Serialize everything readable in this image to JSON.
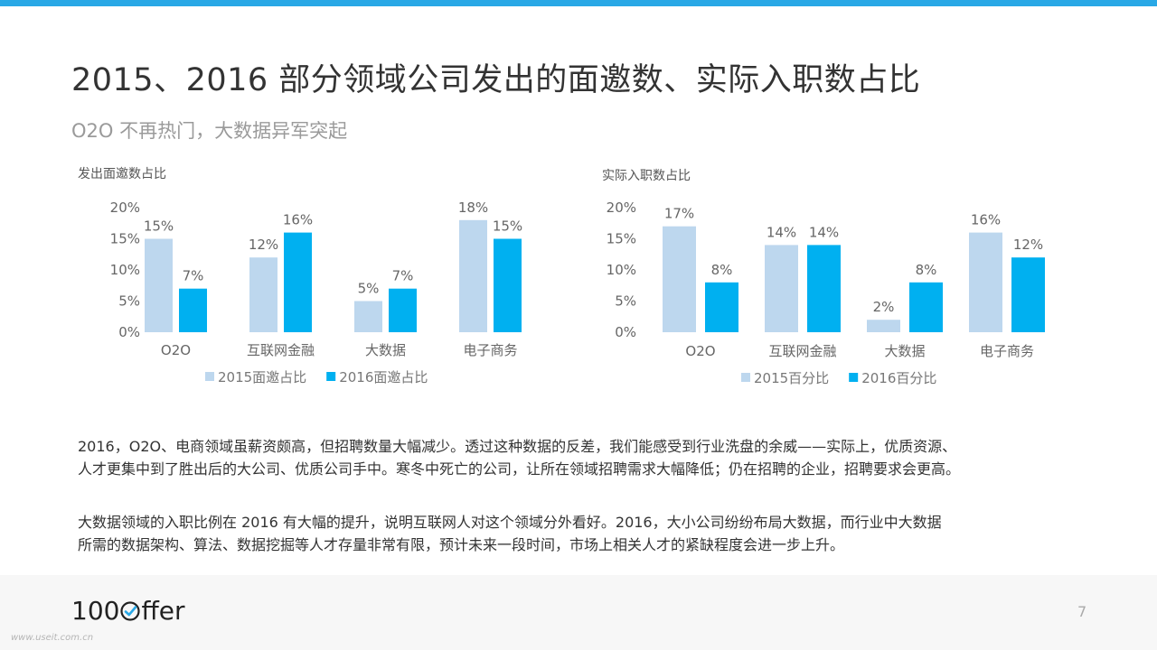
{
  "header": {
    "title": "2015、2016 部分领域公司发出的面邀数、实际入职数占比",
    "subtitle": "O2O 不再热门，大数据异军突起"
  },
  "chart_data": [
    {
      "type": "bar",
      "title": "发出面邀数占比",
      "categories": [
        "O2O",
        "互联网金融",
        "大数据",
        "电子商务"
      ],
      "series": [
        {
          "name": "2015面邀占比",
          "values": [
            15,
            12,
            5,
            18
          ],
          "labels": [
            "15%",
            "12%",
            "5%",
            "18%"
          ],
          "color": "#bdd7ee"
        },
        {
          "name": "2016面邀占比",
          "values": [
            7,
            16,
            7,
            15
          ],
          "labels": [
            "7%",
            "16%",
            "7%",
            "15%"
          ],
          "color": "#00b0f0"
        }
      ],
      "ylim": [
        0,
        20
      ],
      "yticks": [
        "0%",
        "5%",
        "10%",
        "15%",
        "20%"
      ],
      "grid": false,
      "legend": "bottom"
    },
    {
      "type": "bar",
      "title": "实际入职数占比",
      "categories": [
        "O2O",
        "互联网金融",
        "大数据",
        "电子商务"
      ],
      "series": [
        {
          "name": "2015百分比",
          "values": [
            17,
            14,
            2,
            16
          ],
          "labels": [
            "17%",
            "14%",
            "2%",
            "16%"
          ],
          "color": "#bdd7ee"
        },
        {
          "name": "2016百分比",
          "values": [
            8,
            14,
            8,
            12
          ],
          "labels": [
            "8%",
            "14%",
            "8%",
            "12%"
          ],
          "color": "#00b0f0"
        }
      ],
      "ylim": [
        0,
        20
      ],
      "yticks": [
        "0%",
        "5%",
        "10%",
        "15%",
        "20%"
      ],
      "grid": false,
      "legend": "bottom"
    }
  ],
  "paragraphs": {
    "p1_line1": "2016，O2O、电商领域虽薪资颇高，但招聘数量大幅减少。透过这种数据的反差，我们能感受到行业洗盘的余威——实际上，优质资源、",
    "p1_line2": "人才更集中到了胜出后的大公司、优质公司手中。寒冬中死亡的公司，让所在领域招聘需求大幅降低；仍在招聘的企业，招聘要求会更高。",
    "p2_line1": "大数据领域的入职比例在 2016 有大幅的提升，说明互联网人对这个领域分外看好。2016，大小公司纷纷布局大数据，而行业中大数据",
    "p2_line2": "所需的数据架构、算法、数据挖掘等人才存量非常有限，预计未来一段时间，市场上相关人才的紧缺程度会进一步上升。"
  },
  "footer": {
    "logo_left": "100",
    "logo_right": "ffer",
    "page_number": "7",
    "watermark": "www.useit.com.cn"
  },
  "colors": {
    "accent": "#29a8e6",
    "series_2015": "#bdd7ee",
    "series_2016": "#00b0f0"
  }
}
